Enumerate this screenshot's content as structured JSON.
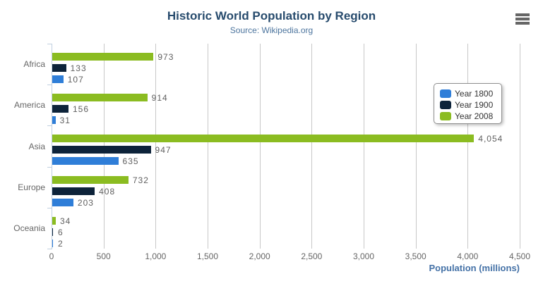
{
  "header": {
    "title": "Historic World Population by Region",
    "subtitle": "Source: Wikipedia.org"
  },
  "menu": {
    "icon": "hamburger-menu-icon",
    "color": "#666666"
  },
  "chart_data": {
    "type": "bar",
    "orientation": "horizontal",
    "title": "Historic World Population by Region",
    "subtitle": "Source: Wikipedia.org",
    "categories": [
      "Africa",
      "America",
      "Asia",
      "Europe",
      "Oceania"
    ],
    "series": [
      {
        "name": "Year 1800",
        "color": "#2f7ed8",
        "values": [
          107,
          31,
          635,
          203,
          2
        ]
      },
      {
        "name": "Year 1900",
        "color": "#0d233a",
        "values": [
          133,
          156,
          947,
          408,
          6
        ]
      },
      {
        "name": "Year 2008",
        "color": "#8bbc21",
        "values": [
          973,
          914,
          4054,
          732,
          34
        ]
      }
    ],
    "bar_visual_order_top_to_bottom": [
      "Year 2008",
      "Year 1900",
      "Year 1800"
    ],
    "xlabel": "Population (millions)",
    "ylabel": "",
    "xlim": [
      0,
      4500
    ],
    "x_ticks": [
      0,
      500,
      1000,
      1500,
      2000,
      2500,
      3000,
      3500,
      4000,
      4500
    ],
    "x_tick_labels": [
      "0",
      "500",
      "1,000",
      "1,500",
      "2,000",
      "2,500",
      "3,000",
      "3,500",
      "4,000",
      "4,500"
    ],
    "data_labels": true,
    "data_label_format": "thousands-comma",
    "grid": true,
    "legend_position": "right"
  },
  "colors": {
    "title": "#274b6d",
    "subtitle": "#4d759e",
    "axis_title": "#4572a7",
    "data_label": "#606060",
    "tick_label": "#666666",
    "grid_line": "#c8c8c8",
    "axis_line": "#c0d0e0",
    "legend_border": "#909090",
    "background": "#ffffff"
  }
}
